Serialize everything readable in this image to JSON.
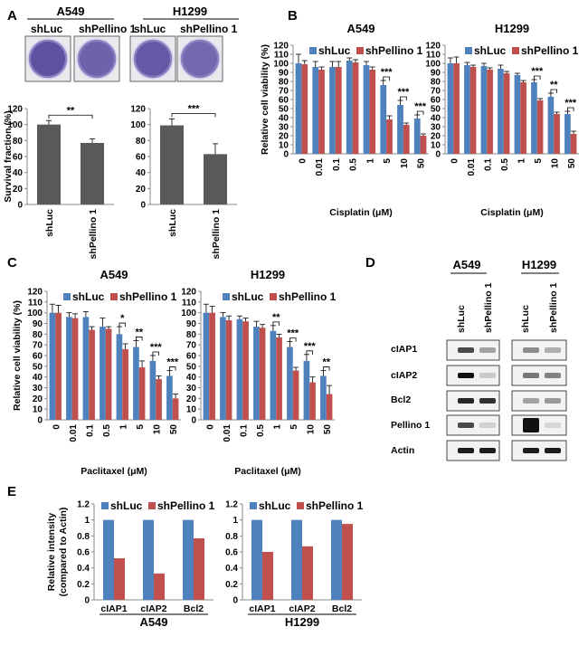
{
  "colors": {
    "shLuc": "#4f81bd",
    "shPellino": "#c0504d",
    "gray": "#595959",
    "plate": "#5a4f9e"
  },
  "panel_letters": [
    "A",
    "B",
    "C",
    "D",
    "E"
  ],
  "panelA": {
    "cell_lines": [
      "A549",
      "H1299"
    ],
    "plate_labels": [
      "shLuc",
      "shPellino 1"
    ],
    "ylabel": "Survival fraction (%)",
    "yticks": [
      "0",
      "20",
      "40",
      "60",
      "80",
      "100",
      "120"
    ]
  },
  "panelD": {
    "cell_lines": [
      "A549",
      "H1299"
    ],
    "lane_labels": [
      "shLuc",
      "shPellino 1"
    ],
    "proteins": [
      "cIAP1",
      "cIAP2",
      "Bcl2",
      "Pellino 1",
      "Actin"
    ]
  },
  "chart_data": [
    {
      "panel": "A",
      "type": "bar",
      "title": "A549",
      "ylabel": "Survival fraction (%)",
      "ylim": [
        0,
        120
      ],
      "categories": [
        "shLuc",
        "shPellino 1"
      ],
      "values": [
        100,
        77
      ],
      "errors": [
        5,
        5
      ],
      "significance": "**"
    },
    {
      "panel": "A",
      "type": "bar",
      "title": "H1299",
      "ylabel": "",
      "ylim": [
        0,
        120
      ],
      "categories": [
        "shLuc",
        "shPellino 1"
      ],
      "values": [
        99,
        63
      ],
      "errors": [
        8,
        13
      ],
      "significance": "***"
    },
    {
      "panel": "B",
      "type": "bar",
      "title": "A549",
      "xlabel": "Cisplatin (μM)",
      "ylabel": "Relative cell viability (%)",
      "ylim": [
        0,
        120
      ],
      "yticks": [
        "0",
        "10",
        "20",
        "30",
        "40",
        "50",
        "60",
        "70",
        "80",
        "90",
        "100",
        "110",
        "120"
      ],
      "categories": [
        "0",
        "0.01",
        "0.1",
        "0.5",
        "1",
        "5",
        "10",
        "50"
      ],
      "series": [
        {
          "name": "shLuc",
          "values": [
            100,
            96,
            96,
            103,
            98,
            76,
            54,
            39
          ],
          "errors": [
            10,
            6,
            6,
            3,
            4,
            5,
            5,
            4
          ]
        },
        {
          "name": "shPellino 1",
          "values": [
            99,
            93,
            96,
            101,
            93,
            38,
            32,
            20
          ],
          "errors": [
            4,
            3,
            6,
            3,
            3,
            4,
            2,
            2
          ]
        }
      ],
      "significance": [
        {
          "category": "5",
          "label": "***"
        },
        {
          "category": "10",
          "label": "***"
        },
        {
          "category": "50",
          "label": "***"
        }
      ]
    },
    {
      "panel": "B",
      "type": "bar",
      "title": "H1299",
      "xlabel": "Cisplatin (μM)",
      "ylabel": "",
      "ylim": [
        0,
        120
      ],
      "yticks": [
        "0",
        "10",
        "20",
        "30",
        "40",
        "50",
        "60",
        "70",
        "80",
        "90",
        "100",
        "110",
        "120"
      ],
      "categories": [
        "0",
        "0.01",
        "0.1",
        "0.5",
        "1",
        "5",
        "10",
        "50"
      ],
      "series": [
        {
          "name": "shLuc",
          "values": [
            100,
            98,
            97,
            94,
            87,
            79,
            63,
            44
          ],
          "errors": [
            6,
            3,
            3,
            4,
            2,
            3,
            4,
            3
          ]
        },
        {
          "name": "shPellino 1",
          "values": [
            100,
            96,
            93,
            89,
            79,
            59,
            44,
            22
          ],
          "errors": [
            7,
            2,
            2,
            2,
            2,
            2,
            2,
            3
          ]
        }
      ],
      "significance": [
        {
          "category": "5",
          "label": "***"
        },
        {
          "category": "10",
          "label": "**"
        },
        {
          "category": "50",
          "label": "***"
        }
      ]
    },
    {
      "panel": "C",
      "type": "bar",
      "title": "A549",
      "xlabel": "Paclitaxel (μM)",
      "ylabel": "Relative cell viability (%)",
      "ylim": [
        0,
        120
      ],
      "yticks": [
        "0",
        "10",
        "20",
        "30",
        "40",
        "50",
        "60",
        "70",
        "80",
        "90",
        "100",
        "110",
        "120"
      ],
      "categories": [
        "0",
        "0.01",
        "0.1",
        "0.5",
        "1",
        "5",
        "10",
        "50"
      ],
      "series": [
        {
          "name": "shLuc",
          "values": [
            100,
            96,
            96,
            87,
            80,
            68,
            55,
            41
          ],
          "errors": [
            8,
            4,
            5,
            8,
            7,
            6,
            5,
            5
          ]
        },
        {
          "name": "shPellino 1",
          "values": [
            100,
            95,
            84,
            85,
            66,
            49,
            38,
            20
          ],
          "errors": [
            7,
            4,
            3,
            2,
            5,
            6,
            3,
            4
          ]
        }
      ],
      "significance": [
        {
          "category": "1",
          "label": "*"
        },
        {
          "category": "5",
          "label": "**"
        },
        {
          "category": "10",
          "label": "***"
        },
        {
          "category": "50",
          "label": "***"
        }
      ]
    },
    {
      "panel": "C",
      "type": "bar",
      "title": "H1299",
      "xlabel": "Paclitaxel (μM)",
      "ylabel": "",
      "ylim": [
        0,
        120
      ],
      "yticks": [
        "0",
        "10",
        "20",
        "30",
        "40",
        "50",
        "60",
        "70",
        "80",
        "90",
        "100",
        "110",
        "120"
      ],
      "categories": [
        "0",
        "0.01",
        "0.1",
        "0.5",
        "1",
        "5",
        "10",
        "50"
      ],
      "series": [
        {
          "name": "shLuc",
          "values": [
            100,
            96,
            94,
            87,
            83,
            68,
            55,
            41
          ],
          "errors": [
            8,
            4,
            3,
            5,
            5,
            5,
            6,
            5
          ]
        },
        {
          "name": "shPellino 1",
          "values": [
            100,
            93,
            92,
            86,
            77,
            46,
            35,
            24
          ],
          "errors": [
            6,
            4,
            3,
            3,
            3,
            3,
            5,
            8
          ]
        }
      ],
      "significance": [
        {
          "category": "1",
          "label": "**"
        },
        {
          "category": "5",
          "label": "***"
        },
        {
          "category": "10",
          "label": "***"
        },
        {
          "category": "50",
          "label": "**"
        }
      ]
    },
    {
      "panel": "E",
      "type": "bar",
      "title": "",
      "xlabel": "A549",
      "ylabel": "Relative intensity (compared to Actin)",
      "ylim": [
        0,
        1.2
      ],
      "yticks": [
        "0",
        "0.2",
        "0.4",
        "0.6",
        "0.8",
        "1",
        "1.2"
      ],
      "categories": [
        "cIAP1",
        "cIAP2",
        "Bcl2"
      ],
      "series": [
        {
          "name": "shLuc",
          "values": [
            1,
            1,
            1
          ]
        },
        {
          "name": "shPellino 1",
          "values": [
            0.52,
            0.33,
            0.77
          ]
        }
      ]
    },
    {
      "panel": "E",
      "type": "bar",
      "title": "",
      "xlabel": "H1299",
      "ylabel": "",
      "ylim": [
        0,
        1.2
      ],
      "yticks": [
        "0",
        "0.2",
        "0.4",
        "0.6",
        "0.8",
        "1",
        "1.2"
      ],
      "categories": [
        "cIAP1",
        "cIAP2",
        "Bcl2"
      ],
      "series": [
        {
          "name": "shLuc",
          "values": [
            1,
            1,
            1
          ]
        },
        {
          "name": "shPellino 1",
          "values": [
            0.6,
            0.67,
            0.95
          ]
        }
      ]
    }
  ]
}
